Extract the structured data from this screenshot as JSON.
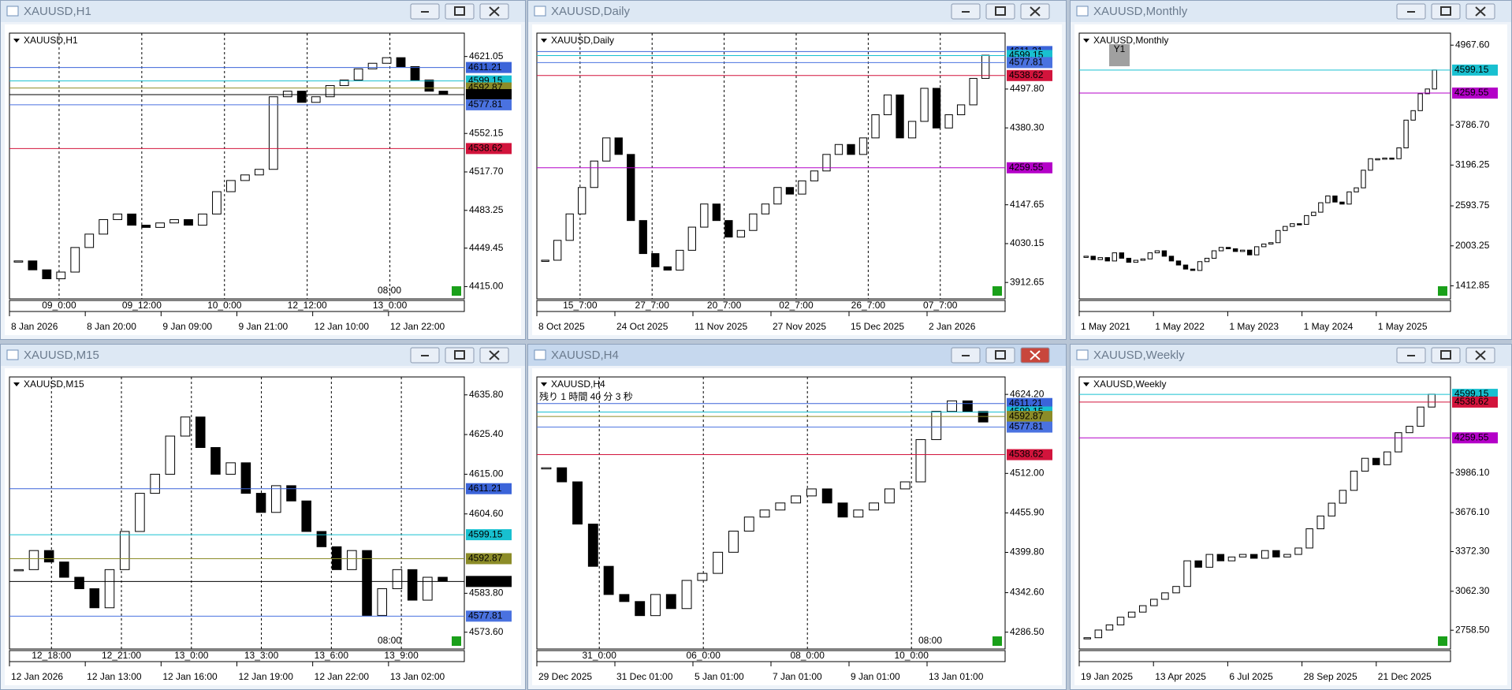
{
  "windows": [
    {
      "title": "XAUUSD,H1",
      "chart_label": "XAUUSD,H1",
      "ylim": [
        4404,
        4642
      ],
      "yticks": [
        4621.05,
        4552.15,
        {
          "value": 4517.7,
          "label": "4517.70"
        },
        4483.25,
        4449.45,
        {
          "value": 4415,
          "label": "4415.00"
        }
      ],
      "levels": [
        {
          "value": 4611.21,
          "color": "#3b64d9"
        },
        {
          "value": 4599.15,
          "color": "#18c0d0"
        },
        {
          "value": 4592.87,
          "color": "#8c8c28"
        },
        {
          "value": 4586.9,
          "label": "4586.90",
          "color": "#000000"
        },
        {
          "value": 4577.81,
          "color": "#4a72e0"
        },
        {
          "value": 4538.62,
          "color": "#d2143c"
        }
      ],
      "times": [
        "8 Jan 2026",
        "8 Jan 20:00",
        "9 Jan 09:00",
        "9 Jan 21:00",
        "12 Jan 10:00",
        "12 Jan 22:00"
      ],
      "sub_times": [
        "09_0:00",
        "09_12:00",
        "10_0:00",
        "12_12:00",
        "13_0:00"
      ],
      "marker": "08:00",
      "closes": [
        4438,
        4430,
        4422,
        4428,
        4450,
        4462,
        4475,
        4480,
        4470,
        4468,
        4472,
        4475,
        4470,
        4480,
        4500,
        4510,
        4515,
        4520,
        4585,
        4590,
        4580,
        4585,
        4595,
        4600,
        4610,
        4615,
        4620,
        4612,
        4600,
        4590,
        4587
      ]
    },
    {
      "title": "XAUUSD,Daily",
      "chart_label": "XAUUSD,Daily",
      "ylim": [
        3863,
        4667
      ],
      "yticks": [
        {
          "value": 4497.8,
          "label": "4497.80"
        },
        {
          "value": 4380.3,
          "label": "4380.30"
        },
        4147.65,
        4030.15,
        3912.65
      ],
      "levels": [
        {
          "value": 4611.21,
          "color": "#3b64d9"
        },
        {
          "value": 4599.15,
          "color": "#18c0d0"
        },
        {
          "value": 4577.81,
          "color": "#4a72e0"
        },
        {
          "value": 4538.62,
          "color": "#d2143c"
        },
        {
          "value": 4259.55,
          "color": "#b400c8"
        }
      ],
      "times": [
        "8 Oct 2025",
        "24 Oct 2025",
        "11 Nov 2025",
        "27 Nov 2025",
        "15 Dec 2025",
        "2 Jan 2026"
      ],
      "sub_times": [
        "15_7:00",
        "27_7:00",
        "20_7:00",
        "02_7:00",
        "26_7:00",
        "07_7:00"
      ],
      "closes": [
        3980,
        4040,
        4120,
        4200,
        4280,
        4350,
        4300,
        4100,
        4000,
        3960,
        3950,
        4010,
        4080,
        4150,
        4100,
        4050,
        4070,
        4120,
        4150,
        4200,
        4180,
        4220,
        4250,
        4300,
        4330,
        4300,
        4350,
        4420,
        4480,
        4350,
        4400,
        4500,
        4380,
        4420,
        4450,
        4530,
        4600
      ]
    },
    {
      "title": "XAUUSD,Monthly",
      "chart_label": "XAUUSD,Monthly",
      "badge": "Y1",
      "ylim": [
        1220,
        5145
      ],
      "yticks": [
        {
          "value": 4967.6,
          "label": "4967.60"
        },
        {
          "value": 3786.7,
          "label": "3786.70"
        },
        3196.25,
        2593.75,
        2003.25,
        1412.85
      ],
      "levels": [
        {
          "value": 4599.15,
          "color": "#18c0d0"
        },
        {
          "value": 4259.55,
          "color": "#b400c8"
        }
      ],
      "times": [
        "1 May 2021",
        "1 May 2022",
        "1 May 2023",
        "1 May 2024",
        "1 May 2025"
      ],
      "sub_times": [],
      "closes": [
        1850,
        1800,
        1830,
        1780,
        1900,
        1820,
        1760,
        1790,
        1810,
        1900,
        1930,
        1850,
        1780,
        1720,
        1660,
        1640,
        1770,
        1820,
        1930,
        1980,
        1960,
        1920,
        1940,
        1870,
        1990,
        2030,
        2050,
        2230,
        2290,
        2330,
        2320,
        2450,
        2500,
        2640,
        2740,
        2650,
        2620,
        2800,
        2860,
        3120,
        3290,
        3290,
        3300,
        3290,
        3450,
        3860,
        4000,
        4250,
        4320,
        4600
      ]
    },
    {
      "title": "XAUUSD,M15",
      "chart_label": "XAUUSD,M15",
      "ylim": [
        4569.2,
        4640.5
      ],
      "yticks": [
        {
          "value": 4635.8,
          "label": "4635.80"
        },
        {
          "value": 4625.4,
          "label": "4625.40"
        },
        {
          "value": 4615,
          "label": "4615.00"
        },
        {
          "value": 4604.6,
          "label": "4604.60"
        },
        {
          "value": 4583.8,
          "label": "4583.80"
        },
        {
          "value": 4573.6,
          "label": "4573.60"
        }
      ],
      "levels": [
        {
          "value": 4611.21,
          "color": "#3b64d9"
        },
        {
          "value": 4599.15,
          "color": "#18c0d0"
        },
        {
          "value": 4592.87,
          "color": "#8c8c28"
        },
        {
          "value": 4586.9,
          "label": "4586.90",
          "color": "#000000"
        },
        {
          "value": 4577.81,
          "color": "#4a72e0"
        }
      ],
      "times": [
        "12 Jan 2026",
        "12 Jan 13:00",
        "12 Jan 16:00",
        "12 Jan 19:00",
        "12 Jan 22:00",
        "13 Jan 02:00"
      ],
      "sub_times": [
        "12_18:00",
        "12_21:00",
        "13_0:00",
        "13_3:00",
        "13_6:00",
        "13_9:00"
      ],
      "marker": "08:00",
      "closes": [
        4590,
        4595,
        4592,
        4588,
        4585,
        4580,
        4590,
        4600,
        4610,
        4615,
        4625,
        4630,
        4622,
        4615,
        4618,
        4610,
        4605,
        4612,
        4608,
        4600,
        4596,
        4590,
        4595,
        4578,
        4585,
        4590,
        4582,
        4588,
        4587
      ]
    },
    {
      "title": "XAUUSD,H4",
      "chart_label": "XAUUSD,H4",
      "active": true,
      "countdown": "残り 1 時間 40 分 3 秒",
      "ylim": [
        4262.6,
        4649
      ],
      "yticks": [
        {
          "value": 4624.2,
          "label": "4624.20"
        },
        {
          "value": 4512,
          "label": "4512.00"
        },
        {
          "value": 4455.9,
          "label": "4455.90"
        },
        {
          "value": 4399.8,
          "label": "4399.80"
        },
        {
          "value": 4342.6,
          "label": "4342.60"
        },
        {
          "value": 4286.5,
          "label": "4286.50"
        }
      ],
      "levels": [
        {
          "value": 4611.21,
          "color": "#3b64d9"
        },
        {
          "value": 4599.15,
          "color": "#18c0d0"
        },
        {
          "value": 4592.87,
          "color": "#8c8c28"
        },
        {
          "value": 4577.81,
          "color": "#4a72e0"
        },
        {
          "value": 4538.62,
          "color": "#d2143c"
        }
      ],
      "times": [
        "29 Dec 2025",
        "31 Dec 01:00",
        "5 Jan 01:00",
        "7 Jan 01:00",
        "9 Jan 01:00",
        "13 Jan 01:00"
      ],
      "sub_times": [
        "31_0:00",
        "06_0:00",
        "08_0:00",
        "10_0:00"
      ],
      "marker": "08:00",
      "closes": [
        4520,
        4500,
        4440,
        4380,
        4340,
        4330,
        4310,
        4340,
        4320,
        4360,
        4370,
        4400,
        4430,
        4450,
        4460,
        4470,
        4480,
        4490,
        4470,
        4450,
        4460,
        4470,
        4490,
        4500,
        4560,
        4600,
        4615,
        4600,
        4585
      ]
    },
    {
      "title": "XAUUSD,Weekly",
      "chart_label": "XAUUSD,Weekly",
      "ylim": [
        2612,
        4735
      ],
      "yticks": [
        {
          "value": 3986.1,
          "label": "3986.10"
        },
        {
          "value": 3676.1,
          "label": "3676.10"
        },
        {
          "value": 3372.3,
          "label": "3372.30"
        },
        {
          "value": 3062.3,
          "label": "3062.30"
        },
        {
          "value": 2758.5,
          "label": "2758.50"
        }
      ],
      "levels": [
        {
          "value": 4599.15,
          "color": "#18c0d0"
        },
        {
          "value": 4538.62,
          "color": "#d2143c"
        },
        {
          "value": 4259.55,
          "color": "#b400c8"
        }
      ],
      "times": [
        "19 Jan 2025",
        "13 Apr 2025",
        "6 Jul 2025",
        "28 Sep 2025",
        "21 Dec 2025"
      ],
      "sub_times": [],
      "closes": [
        2700,
        2760,
        2800,
        2860,
        2900,
        2950,
        3000,
        3050,
        3100,
        3300,
        3250,
        3350,
        3300,
        3330,
        3350,
        3320,
        3380,
        3330,
        3350,
        3400,
        3550,
        3650,
        3750,
        3850,
        4000,
        4100,
        4050,
        4150,
        4300,
        4350,
        4500,
        4600
      ]
    }
  ]
}
